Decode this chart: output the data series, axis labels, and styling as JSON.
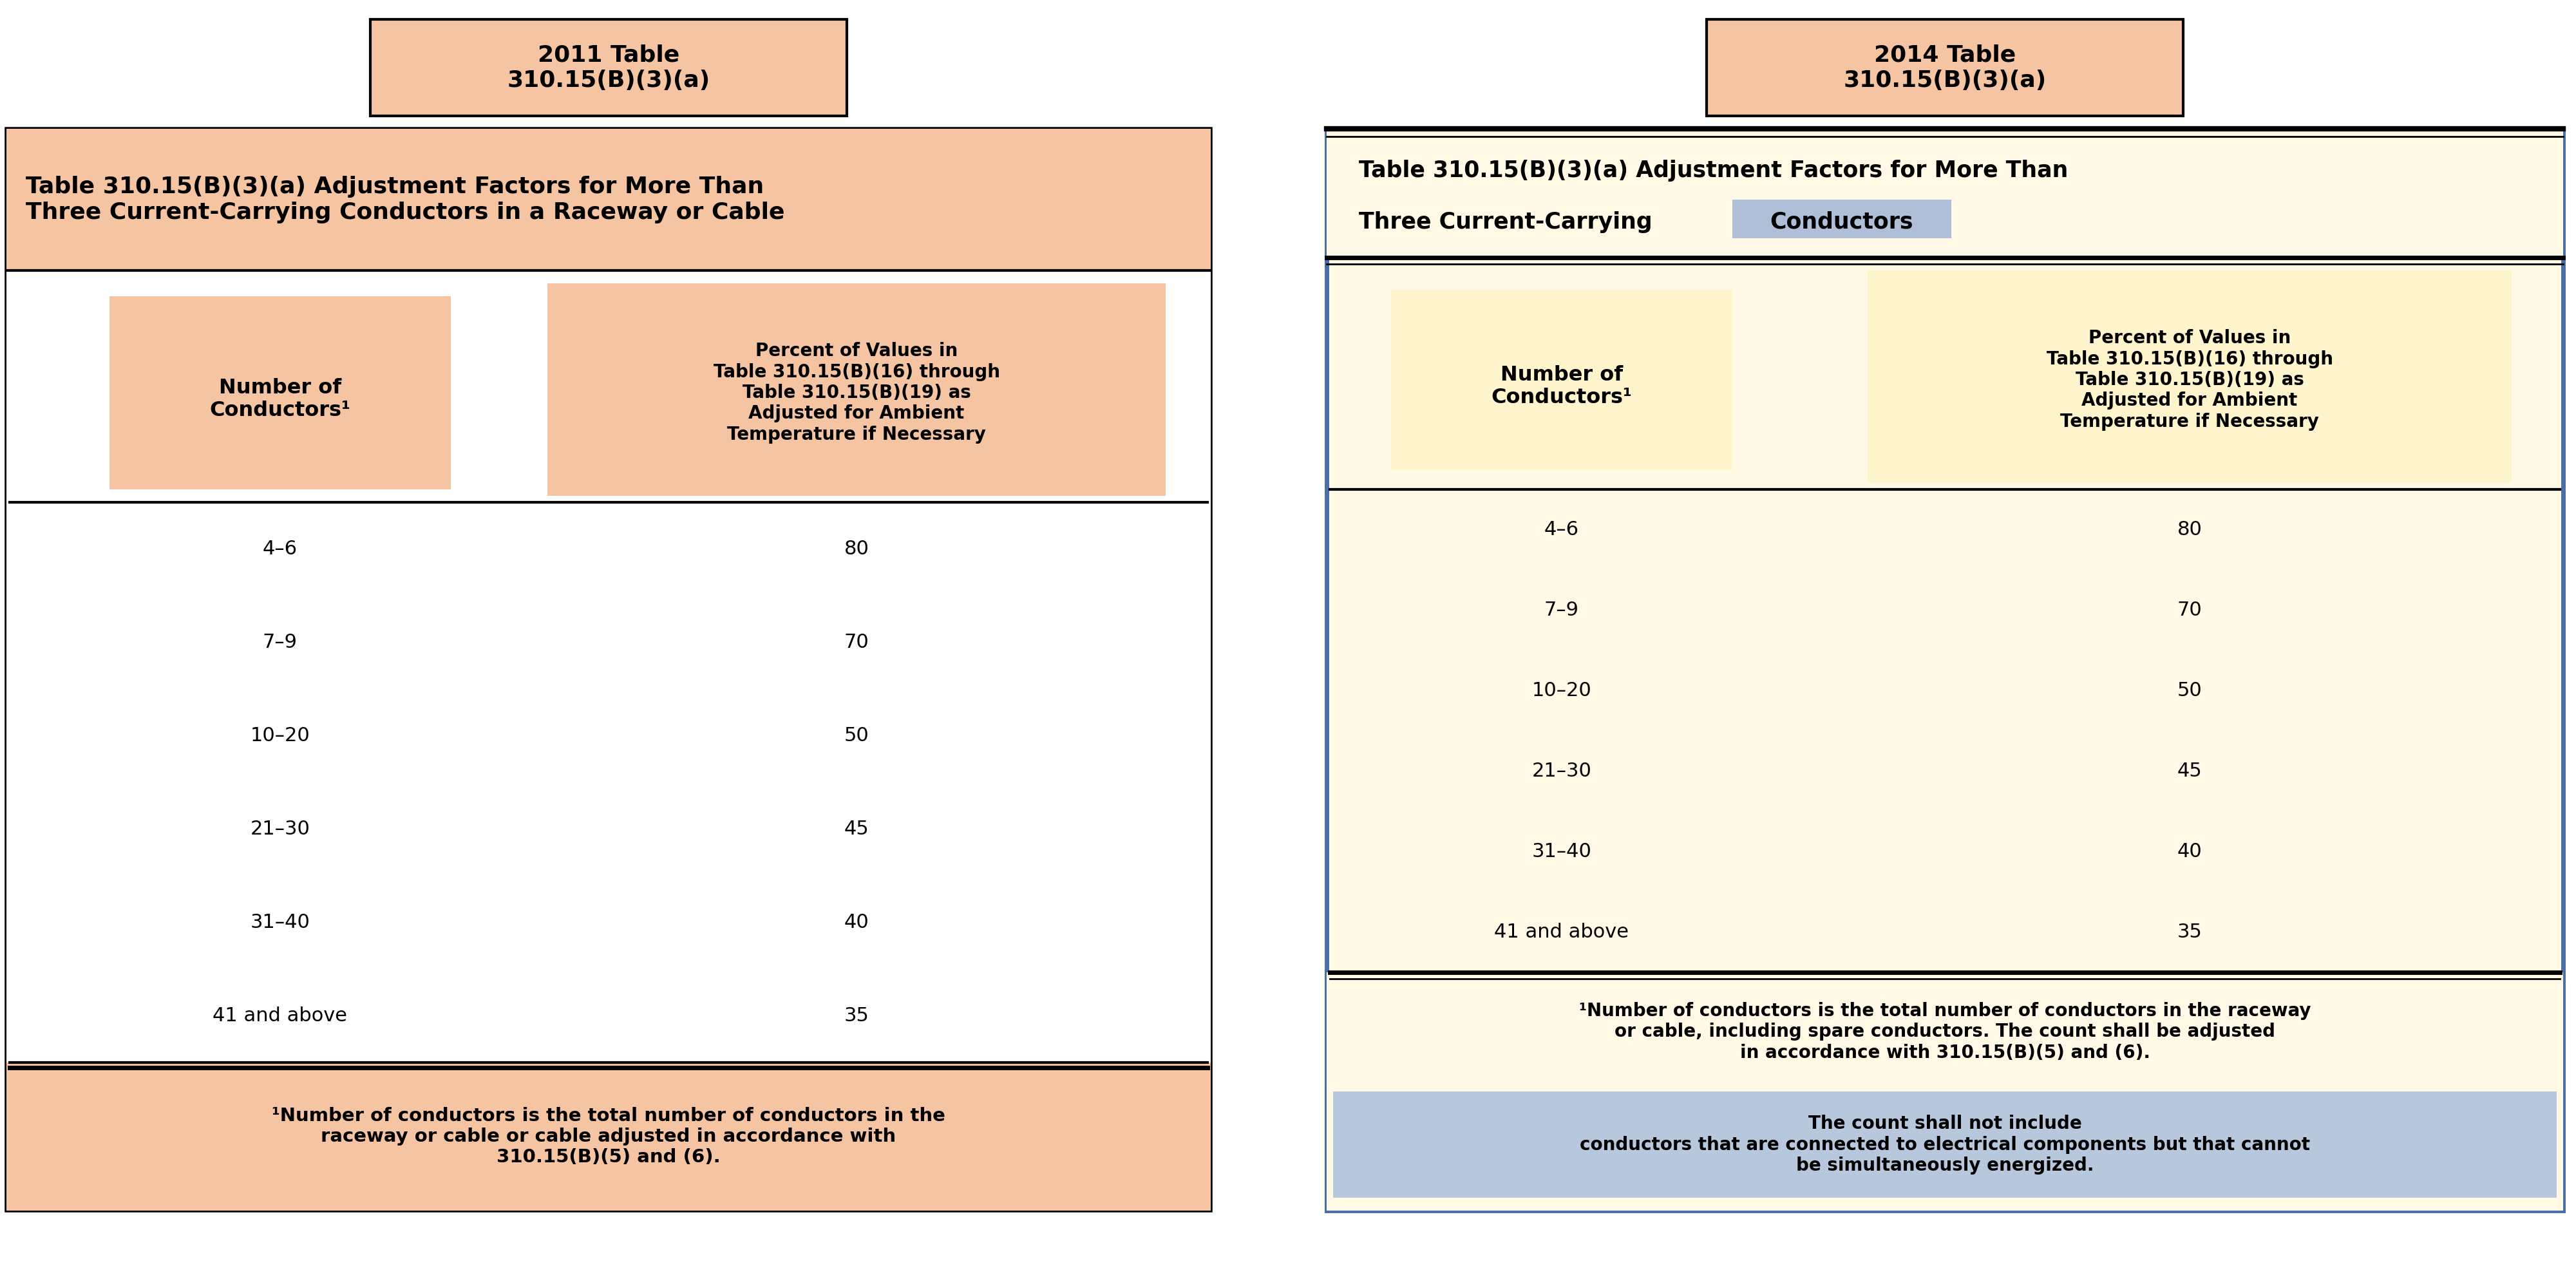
{
  "left_header_label": "2011 Table\n310.15(B)(3)(a)",
  "right_header_label": "2014 Table\n310.15(B)(3)(a)",
  "left_title": "Table 310.15(B)(3)(a) Adjustment Factors for More Than\nThree Current-Carrying Conductors in a Raceway or Cable",
  "right_title_line1": "Table 310.15(B)(3)(a) Adjustment Factors for More Than",
  "right_title_line2_pre": "Three Current-Carrying ",
  "right_title_highlight": "Conductors",
  "col1_header": "Number of\nConductors¹",
  "col2_header": "Percent of Values in\nTable 310.15(B)(16) through\nTable 310.15(B)(19) as\nAdjusted for Ambient\nTemperature if Necessary",
  "conductors": [
    "4–6",
    "7–9",
    "10–20",
    "21–30",
    "31–40",
    "41 and above"
  ],
  "percents": [
    "80",
    "70",
    "50",
    "45",
    "40",
    "35"
  ],
  "left_footnote": "¹Number of conductors is the total number of conductors in the\nraceway or cable or cable adjusted in accordance with\n310.15(B)(5) and (6).",
  "right_footnote_part1": "¹Number of conductors is the total number of conductors in the raceway\nor cable, including spare conductors. The count shall be adjusted\nin accordance with 310.15(B)(5) and (6). ",
  "right_footnote_part2": "The count shall not include\nconductors that are connected to electrical components but that cannot\nbe simultaneously energized.",
  "color_salmon": "#F5C4A3",
  "color_white": "#FFFFFF",
  "color_yellow_light": "#FFF9E6",
  "color_col2_header_right": "#FFF5CC",
  "color_right_highlight_word": "#B0BFD8",
  "color_right_footnote_highlight": "#B8C8DC",
  "color_right_border": "#4a6fa5",
  "bg_color": "#FFFFFF"
}
